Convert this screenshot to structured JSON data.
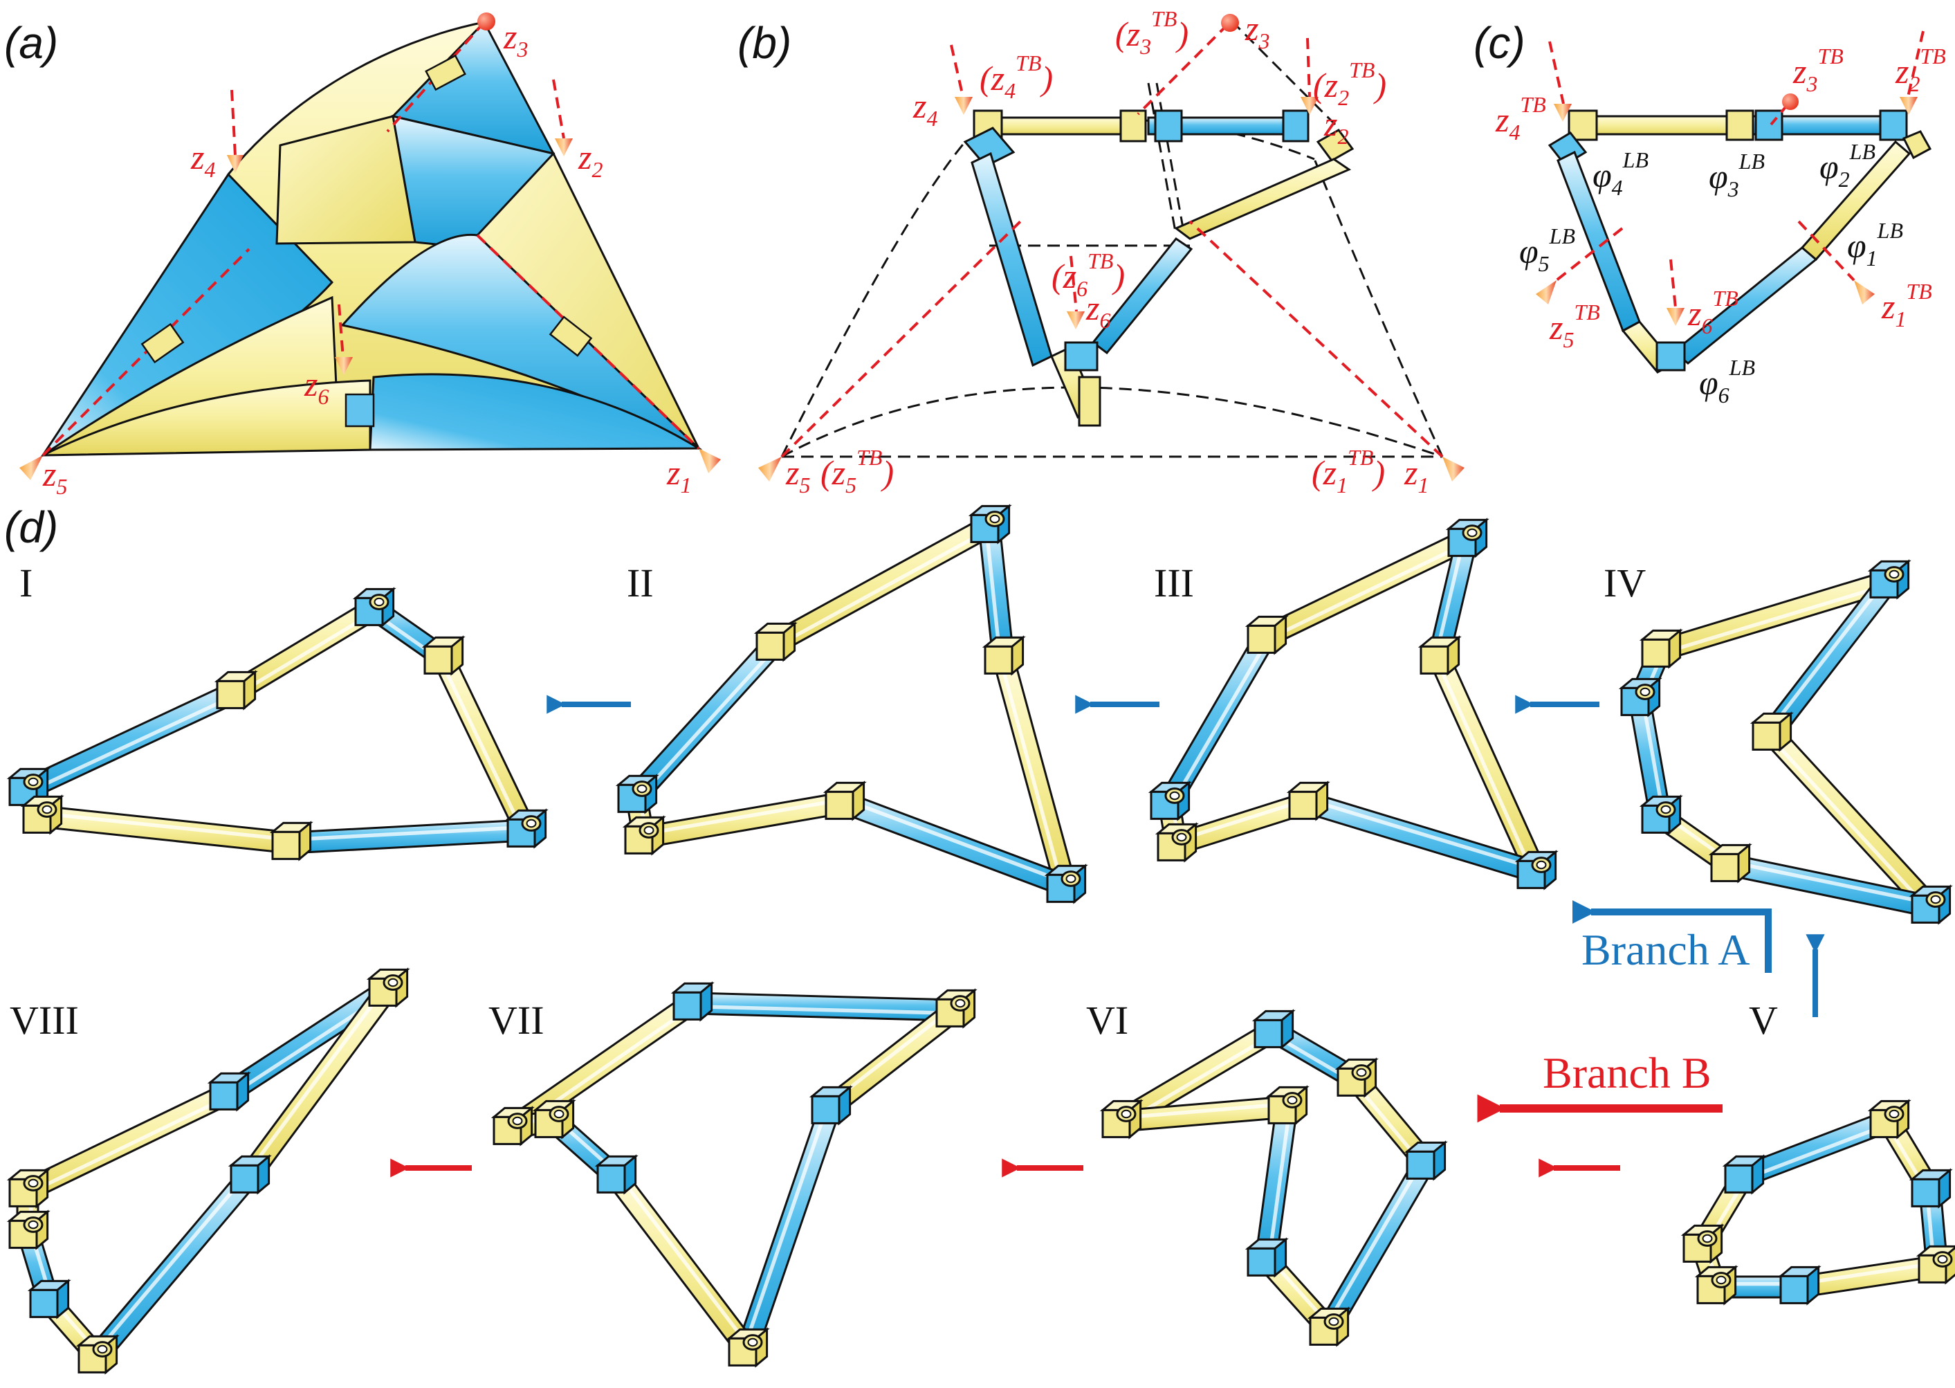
{
  "panels": {
    "a": "(a)",
    "b": "(b)",
    "c": "(c)",
    "d": "(d)"
  },
  "axis_base": "z",
  "axis_sup": "TB",
  "angle_base": "φ",
  "angle_sup": "LB",
  "subs": [
    "1",
    "2",
    "3",
    "4",
    "5",
    "6"
  ],
  "states": [
    "I",
    "II",
    "III",
    "IV",
    "V",
    "VI",
    "VII",
    "VIII"
  ],
  "branch_a": "Branch A",
  "branch_b": "Branch B",
  "colors": {
    "yellow": "#f7f0a6",
    "yellow_dark": "#e6d760",
    "blue": "#29aae1",
    "blue_light": "#bfe6f8",
    "red": "#e21c23",
    "arrow_blue": "#1b75bb",
    "outline": "#111111"
  }
}
